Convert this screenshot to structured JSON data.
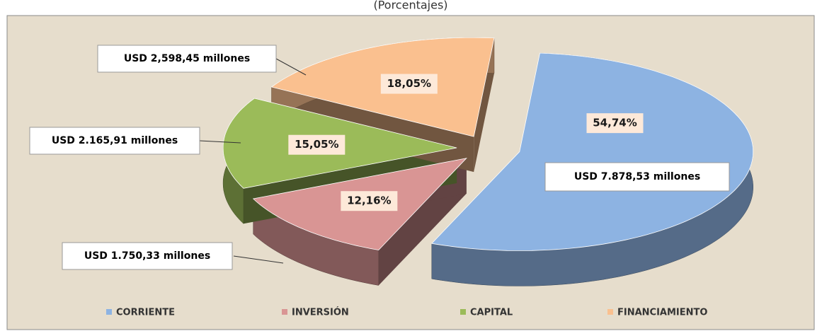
{
  "chart_data": {
    "type": "pie",
    "subtitle": "(Porcentajes)",
    "categories": [
      "CORRIENTE",
      "INVERSIÓN",
      "CAPITAL",
      "FINANCIAMIENTO"
    ],
    "values": [
      54.74,
      12.16,
      15.05,
      18.05
    ],
    "value_labels": [
      "54,74%",
      "12,16%",
      "15,05%",
      "18,05%"
    ],
    "annotations": [
      "USD 7.878,53 millones",
      "USD 1.750,33 millones",
      "USD 2.165,91 millones",
      "USD 2,598,45 millones"
    ],
    "colors": [
      "#8db3e2",
      "#d99594",
      "#9bbb59",
      "#fac08f"
    ],
    "legend": "bottom"
  }
}
